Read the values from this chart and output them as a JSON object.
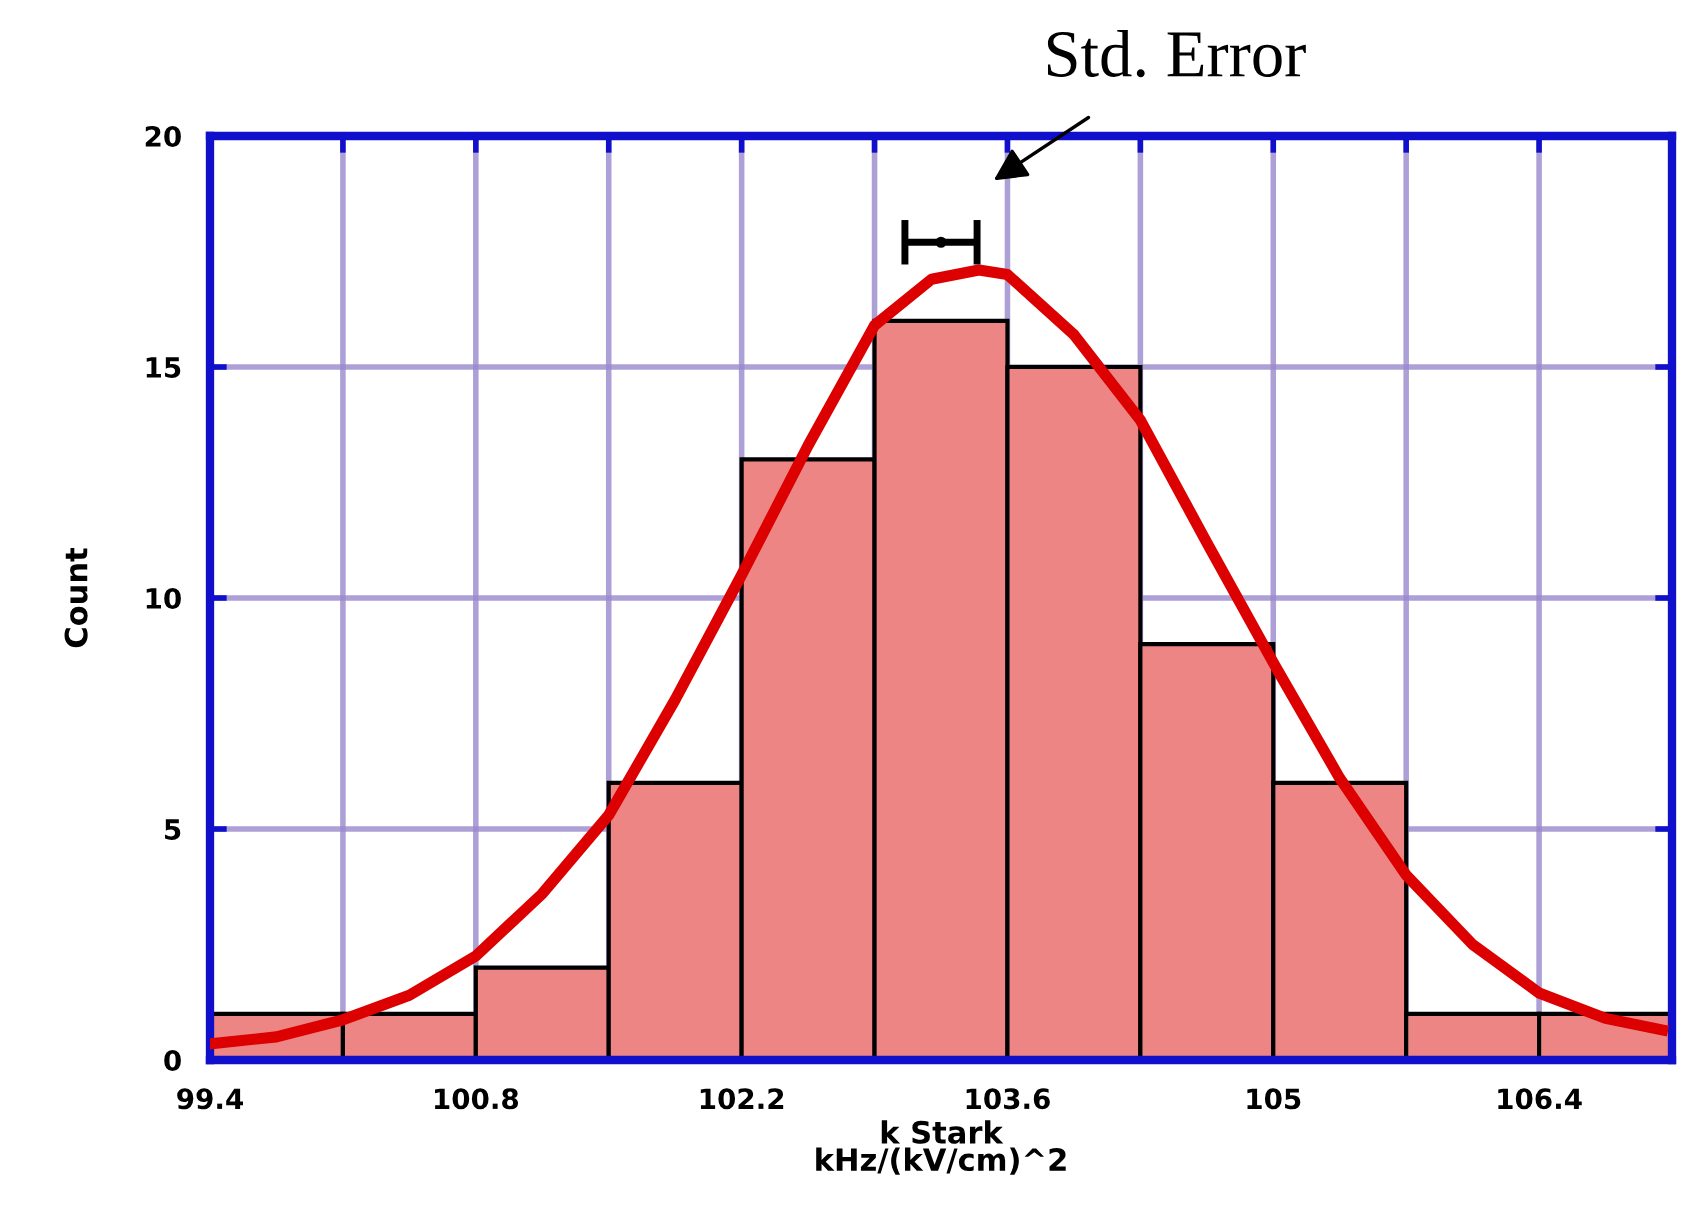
{
  "chart_data": {
    "type": "histogram",
    "xlabel": "k Stark\nkHz/(kV/cm)^2",
    "ylabel": "Count",
    "bins": [
      99.4,
      100.1,
      100.8,
      101.5,
      102.2,
      102.9,
      103.6,
      104.3,
      105.0,
      105.7,
      106.4,
      107.1
    ],
    "values": [
      1,
      1,
      2,
      6,
      13,
      16,
      15,
      9,
      6,
      1,
      1
    ],
    "color": "#ee8585",
    "series": [
      {
        "type": "line",
        "color": "#dd0000",
        "x": [
          99.4,
          99.75,
          100.1,
          100.45,
          100.8,
          101.15,
          101.5,
          101.85,
          102.2,
          102.55,
          102.9,
          103.2,
          103.45,
          103.6,
          103.95,
          104.3,
          104.65,
          105.0,
          105.35,
          105.7,
          106.05,
          106.4,
          106.75,
          107.05
        ],
        "values": [
          0.35,
          0.5,
          0.87,
          1.4,
          2.25,
          3.6,
          5.3,
          7.8,
          10.5,
          13.3,
          15.9,
          16.9,
          17.1,
          17.0,
          15.7,
          13.85,
          11.2,
          8.6,
          6.1,
          4.0,
          2.5,
          1.45,
          0.9,
          0.65
        ]
      },
      {
        "type": "scatter",
        "color": "#000000",
        "x": [
          103.25
        ],
        "values": [
          17.7
        ],
        "xerrors": [
          0.19
        ]
      }
    ],
    "annotations": [
      "Std. Error"
    ],
    "xlim": [
      99.4,
      107.1
    ],
    "xticks": [
      99.4,
      {
        "value": 100.1,
        "label": null
      },
      100.8,
      {
        "value": 101.5,
        "label": null
      },
      102.2,
      {
        "value": 102.9,
        "label": null
      },
      103.6,
      {
        "value": 104.3,
        "label": null
      },
      105,
      {
        "value": 105.7,
        "label": null
      },
      106.4,
      {
        "value": 107.1,
        "label": null
      }
    ],
    "ylim": [
      0,
      20
    ],
    "yticks": [
      0,
      5,
      10,
      15,
      20
    ],
    "grid": true,
    "legend": false
  }
}
